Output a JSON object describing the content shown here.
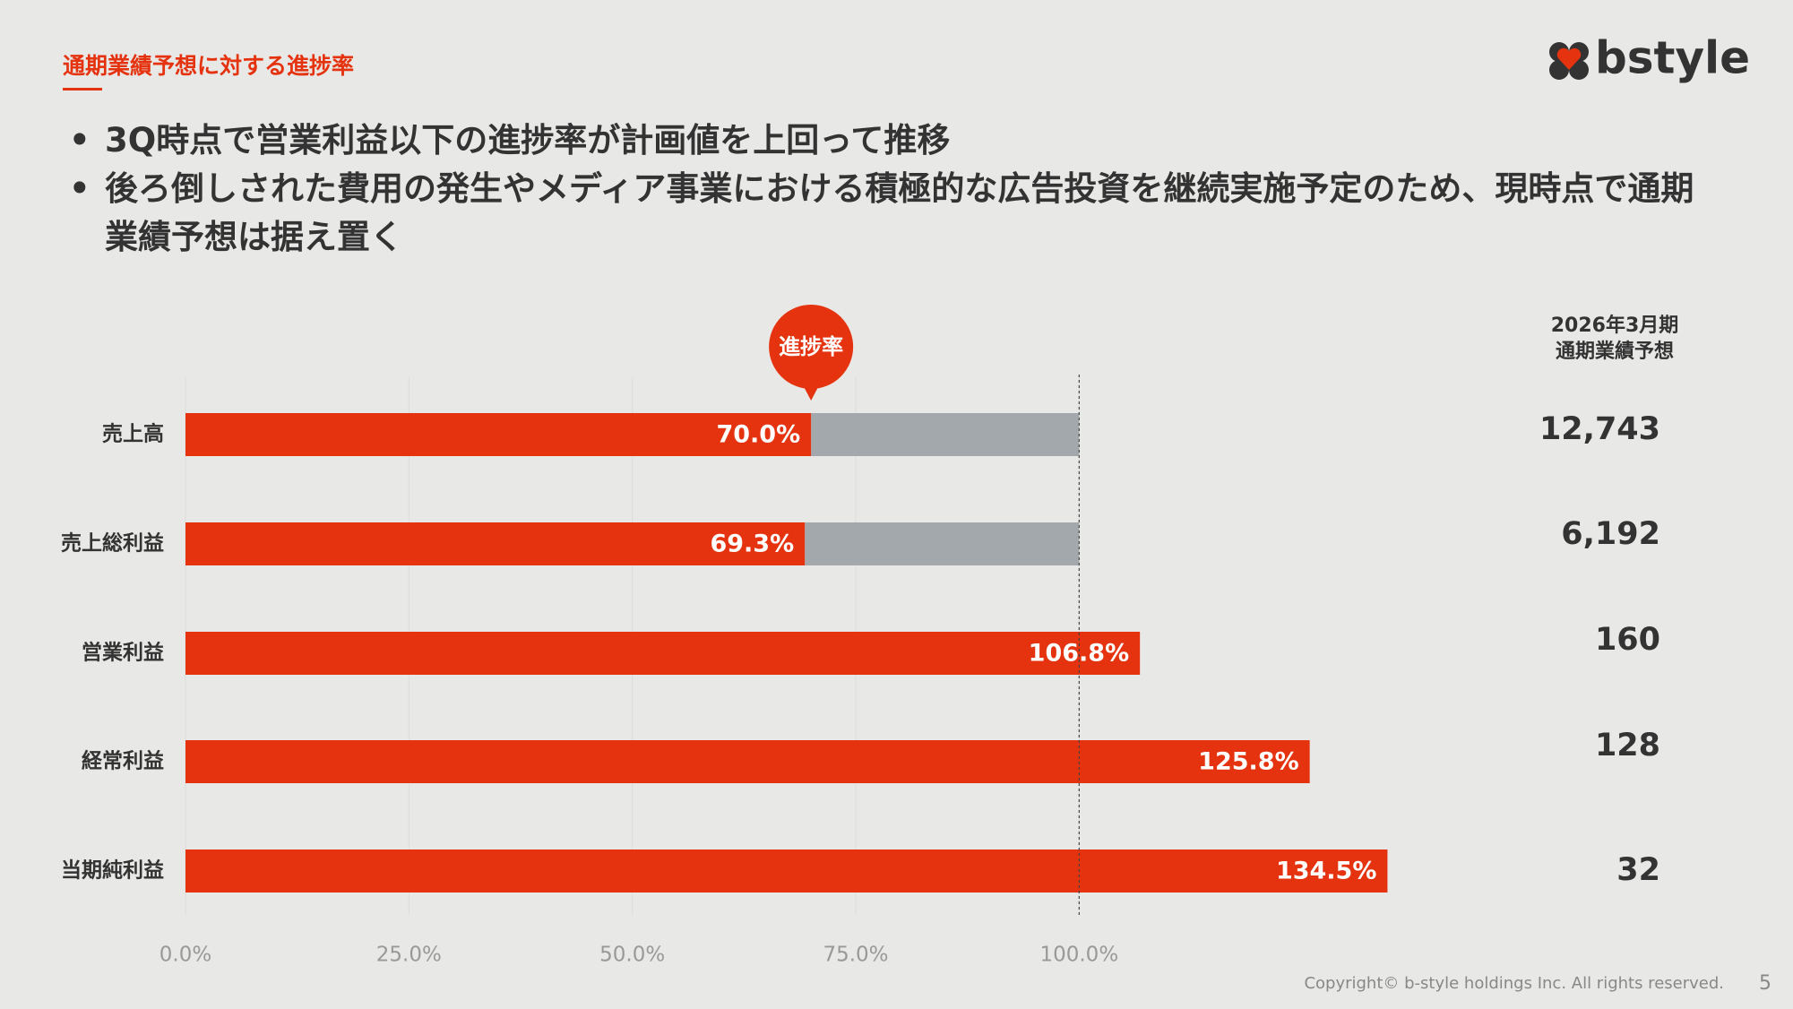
{
  "header": {
    "title": "通期業績予想に対する進捗率",
    "logo": "bstyle",
    "bullets": [
      "3Q時点で営業利益以下の進捗率が計画値を上回って推移",
      "後ろ倒しされた費用の発生やメディア事業における積極的な広告投資を継続実施予定のため、現時点で通期業績予想は据え置く"
    ]
  },
  "chart_data": {
    "type": "hbar",
    "annotation": "進捗率",
    "categories": [
      "売上高",
      "売上総利益",
      "営業利益",
      "経常利益",
      "当期純利益"
    ],
    "values": [
      70.0,
      69.3,
      106.8,
      125.8,
      134.5
    ],
    "value_labels": [
      "70.0%",
      "69.3%",
      "106.8%",
      "125.8%",
      "134.5%"
    ],
    "color": "#e5330f",
    "target": 100,
    "remainder_color": "#a3a8ad",
    "xlim": [
      0,
      150
    ],
    "xticks": [
      {
        "value": 0,
        "label": "0.0%"
      },
      {
        "value": 25,
        "label": "25.0%"
      },
      {
        "value": 50,
        "label": "50.0%"
      },
      {
        "value": 75,
        "label": "75.0%"
      },
      {
        "value": 100,
        "label": "100.0%"
      }
    ],
    "grid": true
  },
  "forecast": {
    "heading": [
      "2026年3月期",
      "通期業績予想"
    ],
    "values": [
      "12,743",
      "6,192",
      "160",
      "128",
      "32"
    ]
  },
  "footer": {
    "copyright": "Copyright© b-style holdings Inc. All rights reserved.",
    "page": "5"
  }
}
